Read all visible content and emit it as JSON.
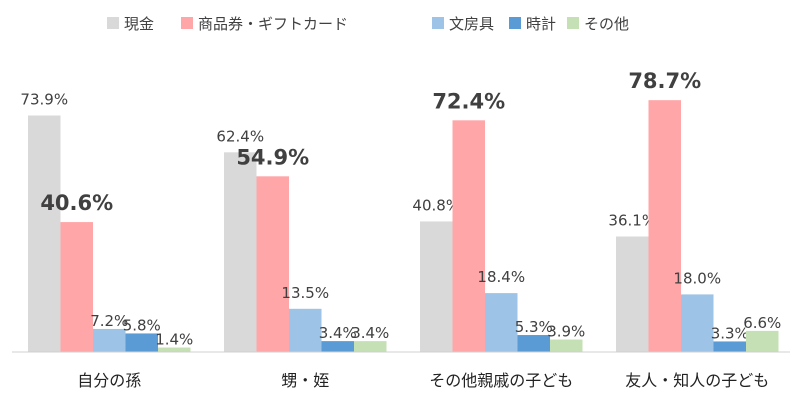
{
  "chart_data": {
    "type": "bar",
    "title": "",
    "xlabel": "",
    "ylabel": "",
    "ylim": [
      0,
      80
    ],
    "grid": false,
    "legend": "top",
    "categories": [
      "自分の孫",
      "甥・姪",
      "その他親戚の子ども",
      "友人・知人の子ども"
    ],
    "series": [
      {
        "name": "現金",
        "color": "#d9d9d9",
        "values": [
          73.9,
          62.4,
          40.8,
          36.1
        ]
      },
      {
        "name": "商品券・ギフトカード",
        "color": "#ffa6a8",
        "values": [
          40.6,
          54.9,
          72.4,
          78.7
        ]
      },
      {
        "name": "文房具",
        "color": "#9dc3e6",
        "values": [
          7.2,
          13.5,
          18.4,
          18.0
        ]
      },
      {
        "name": "時計",
        "color": "#5b9bd5",
        "values": [
          5.8,
          3.4,
          5.3,
          3.3
        ]
      },
      {
        "name": "その他",
        "color": "#c5e0b4",
        "values": [
          1.4,
          3.4,
          3.9,
          6.6
        ]
      }
    ],
    "data_labels": [
      [
        "73.9%",
        "40.6%",
        "7.2%",
        "5.8%",
        "1.4%"
      ],
      [
        "62.4%",
        "54.9%",
        "13.5%",
        "3.4%",
        "3.4%"
      ],
      [
        "40.8%",
        "72.4%",
        "18.4%",
        "5.3%",
        "3.9%"
      ],
      [
        "36.1%",
        "78.7%",
        "18.0%",
        "3.3%",
        "6.6%"
      ]
    ],
    "highlighted_series": "商品券・ギフトカード"
  }
}
